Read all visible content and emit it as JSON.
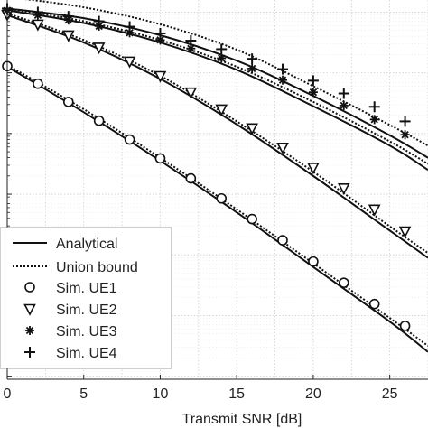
{
  "chart_data": {
    "type": "line",
    "xlabel": "Transmit SNR [dB]",
    "ylabel": "",
    "xlim": [
      0,
      27.5
    ],
    "ylim_log10": [
      -6.05,
      0.2
    ],
    "y_scale": "log",
    "grid": true,
    "legend_placement": "bottom-left",
    "x_ticks": [
      0,
      5,
      10,
      15,
      20,
      25
    ],
    "x_tick_labels": [
      "0",
      "5",
      "10",
      "15",
      "20",
      "25"
    ],
    "y_major_ticks_log10": [
      -6,
      -5,
      -4,
      -3,
      -2,
      -1,
      0
    ],
    "series": [
      {
        "key": "ue1",
        "legend_name": "Sim. UE1",
        "marker": "circle",
        "analytical_log10": [
          [
            0,
            -0.9
          ],
          [
            5,
            -1.65
          ],
          [
            10,
            -2.45
          ],
          [
            15,
            -3.3
          ],
          [
            20,
            -4.2
          ],
          [
            25,
            -5.1
          ],
          [
            27.5,
            -5.6
          ]
        ],
        "union_log10": [
          [
            0,
            -0.87
          ],
          [
            5,
            -1.6
          ],
          [
            10,
            -2.4
          ],
          [
            15,
            -3.25
          ],
          [
            20,
            -4.14
          ],
          [
            25,
            -5.04
          ],
          [
            27.5,
            -5.5
          ]
        ],
        "sim_x": [
          0,
          2,
          4,
          6,
          8,
          10,
          12,
          14,
          16,
          18,
          20,
          22,
          24,
          26
        ],
        "sim_log10": [
          -0.89,
          -1.18,
          -1.48,
          -1.79,
          -2.1,
          -2.41,
          -2.74,
          -3.07,
          -3.41,
          -3.76,
          -4.11,
          -4.46,
          -4.81,
          -5.17
        ]
      },
      {
        "key": "ue2",
        "legend_name": "Sim. UE2",
        "marker": "triangle-down",
        "analytical_log10": [
          [
            0,
            -0.05
          ],
          [
            5,
            -0.5
          ],
          [
            10,
            -1.1
          ],
          [
            15,
            -1.85
          ],
          [
            20,
            -2.7
          ],
          [
            25,
            -3.6
          ],
          [
            27.5,
            -4.05
          ]
        ],
        "union_log10": [
          [
            0,
            -0.02
          ],
          [
            5,
            -0.46
          ],
          [
            10,
            -1.05
          ],
          [
            15,
            -1.8
          ],
          [
            20,
            -2.63
          ],
          [
            25,
            -3.53
          ],
          [
            27.5,
            -3.97
          ]
        ],
        "sim_x": [
          0,
          2,
          4,
          6,
          8,
          10,
          12,
          14,
          16,
          18,
          20,
          22,
          24,
          26
        ],
        "sim_log10": [
          -0.04,
          -0.2,
          -0.38,
          -0.58,
          -0.81,
          -1.05,
          -1.32,
          -1.6,
          -1.91,
          -2.23,
          -2.56,
          -2.9,
          -3.25,
          -3.61
        ]
      },
      {
        "key": "ue3",
        "legend_name": "Sim. UE3",
        "marker": "asterisk",
        "analytical_log10": [
          [
            0,
            0.03
          ],
          [
            5,
            -0.18
          ],
          [
            10,
            -0.5
          ],
          [
            15,
            -0.95
          ],
          [
            20,
            -1.55
          ],
          [
            25,
            -2.2
          ],
          [
            27.5,
            -2.6
          ]
        ],
        "union_log10": [
          [
            0,
            0.06
          ],
          [
            5,
            -0.15
          ],
          [
            10,
            -0.46
          ],
          [
            15,
            -0.9
          ],
          [
            20,
            -1.48
          ],
          [
            25,
            -2.13
          ],
          [
            27.5,
            -2.5
          ]
        ],
        "sim_x": [
          0,
          2,
          4,
          6,
          8,
          10,
          12,
          14,
          16,
          18,
          20,
          22,
          24,
          26
        ],
        "sim_log10": [
          0.03,
          -0.05,
          -0.13,
          -0.23,
          -0.34,
          -0.46,
          -0.6,
          -0.76,
          -0.93,
          -1.12,
          -1.32,
          -1.54,
          -1.77,
          -2.02
        ]
      },
      {
        "key": "ue4",
        "legend_name": "Sim. UE4",
        "marker": "plus",
        "analytical_log10": [
          [
            0,
            0.06
          ],
          [
            5,
            -0.1
          ],
          [
            10,
            -0.38
          ],
          [
            15,
            -0.8
          ],
          [
            20,
            -1.38
          ],
          [
            25,
            -2.03
          ],
          [
            27.5,
            -2.4
          ]
        ],
        "union_log10": [
          [
            0,
            0.25
          ],
          [
            5,
            0.08
          ],
          [
            10,
            -0.2
          ],
          [
            15,
            -0.62
          ],
          [
            20,
            -1.22
          ],
          [
            25,
            -1.86
          ],
          [
            27.5,
            -2.2
          ]
        ],
        "sim_x": [
          0,
          2,
          4,
          6,
          8,
          10,
          12,
          14,
          16,
          18,
          20,
          22,
          24,
          26
        ],
        "sim_log10": [
          0.06,
          0.0,
          -0.07,
          -0.15,
          -0.24,
          -0.35,
          -0.47,
          -0.61,
          -0.77,
          -0.94,
          -1.13,
          -1.34,
          -1.56,
          -1.8
        ]
      }
    ],
    "legend": [
      {
        "label": "Analytical",
        "style": "solid"
      },
      {
        "label": "Union bound",
        "style": "dotted"
      },
      {
        "label": "Sim. UE1",
        "marker": "circle"
      },
      {
        "label": "Sim. UE2",
        "marker": "triangle-down"
      },
      {
        "label": "Sim. UE3",
        "marker": "asterisk"
      },
      {
        "label": "Sim. UE4",
        "marker": "plus"
      }
    ],
    "colors": {
      "lines": "#111111",
      "grid": "#cfcfcf",
      "grid_minor": "#e3e3e3",
      "axes": "#222222"
    }
  }
}
